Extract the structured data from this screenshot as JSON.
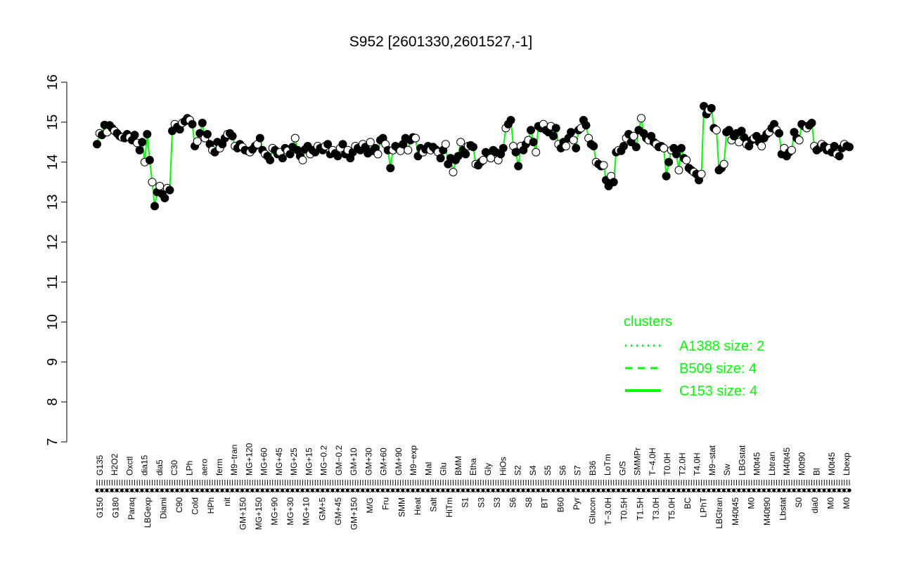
{
  "chart_data": {
    "type": "scatter",
    "title": "S952 [2601330,2601527,-1]",
    "xlabel": "",
    "ylabel": "",
    "ylim": [
      7,
      16
    ],
    "yticks": [
      7,
      8,
      9,
      10,
      11,
      12,
      13,
      14,
      15,
      16
    ],
    "grid": false,
    "legend_position": "right",
    "legend": {
      "title": "clusters",
      "color": "#00ff00",
      "entries": [
        {
          "label": "A1388 size: 2",
          "style": "dotted"
        },
        {
          "label": "B509 size: 4",
          "style": "dashed"
        },
        {
          "label": "C153 size: 4",
          "style": "solid"
        }
      ]
    },
    "line_color": "#00ff00",
    "x_tick_labels_top": [
      "G135",
      "H2O2",
      "Oxctl",
      "dia15",
      "dia5",
      "C30",
      "LPh",
      "aero",
      "ferm",
      "M9−tran",
      "MG+120",
      "MG+60",
      "MG+45",
      "MG+25",
      "MG+15",
      "MG−0.2",
      "GM−0.2",
      "GM+10",
      "GM+30",
      "GM+60",
      "GM+90",
      "M9−exp",
      "Mal",
      "Glu",
      "BMM",
      "Etha",
      "Gly",
      "HiOs",
      "S2",
      "S4",
      "S5",
      "S6",
      "S7",
      "B36",
      "LoTm",
      "G/S",
      "SMMPr",
      "T−4.0H",
      "T0.0H",
      "T2.0H",
      "T4.0H",
      "M9−stat",
      "Sw",
      "LBGstat",
      "M0t45",
      "Lbtran",
      "M40t45",
      "M0t90",
      "Bl",
      "M0t45",
      "Lbexp"
    ],
    "x_tick_labels_bottom": [
      "G150",
      "G180",
      "Paraq",
      "LBGexp",
      "Diami",
      "C90",
      "Cold",
      "HPh",
      "nit",
      "GM+150",
      "MG+150",
      "MG+90",
      "MG+30",
      "MG+10",
      "GM+5",
      "GM+45",
      "GM+150",
      "M/G",
      "Fru",
      "SMM",
      "Heat",
      "Salt",
      "HiTm",
      "S1",
      "S3",
      "S3",
      "S6",
      "S8",
      "BT",
      "B60",
      "Pyr",
      "Glucon",
      "T−3.0H",
      "T0.5H",
      "T1.5H",
      "T3.0H",
      "T5.0H",
      "BC",
      "LPhT",
      "LBGtran",
      "M40t45",
      "M0",
      "M40t90",
      "Lbstat",
      "S0",
      "dia0",
      "M0",
      "M0"
    ],
    "series": [
      {
        "values": [
          14.45,
          14.72,
          14.68,
          14.93,
          14.75,
          14.92,
          14.85,
          14.78,
          14.72,
          14.65,
          14.62,
          14.6,
          14.7,
          14.62,
          14.55,
          14.68,
          14.48,
          14.3,
          14.5,
          14.0,
          14.7,
          14.05
        ]
      },
      {
        "values": [
          13.5,
          12.9,
          13.25,
          13.4,
          13.2,
          13.1,
          13.35,
          13.3
        ]
      },
      {
        "values": [
          14.78,
          14.95,
          14.88,
          14.82,
          14.98,
          15.02,
          15.1,
          15.05,
          14.95,
          14.4,
          14.52,
          14.72,
          14.98,
          14.6,
          14.7,
          14.45,
          14.3,
          14.25,
          14.5,
          14.35,
          14.45,
          14.6,
          14.7,
          14.72,
          14.65
        ]
      },
      {
        "values": [
          14.4,
          14.35,
          14.45,
          14.38,
          14.3,
          14.28,
          14.25,
          14.32,
          14.4,
          14.45,
          14.6,
          14.3,
          14.2,
          14.15,
          14.05,
          14.35,
          14.3,
          14.2,
          14.25,
          14.1,
          14.35,
          14.28,
          14.2,
          14.38,
          14.6,
          14.3,
          14.15,
          14.05,
          14.32,
          14.4,
          14.2,
          14.3,
          14.25,
          14.4,
          14.35,
          14.3,
          14.4,
          14.45,
          14.2,
          14.3,
          14.22,
          14.15,
          14.35,
          14.45,
          14.2,
          14.3,
          14.1,
          14.25,
          14.4,
          14.35,
          14.3,
          14.45,
          14.38,
          14.22,
          14.5,
          14.28,
          14.35,
          14.2,
          14.55,
          14.6,
          14.45,
          14.3,
          13.85,
          14.3,
          14.4,
          14.35,
          14.28,
          14.45,
          14.6,
          14.3,
          14.55,
          14.62,
          14.6
        ]
      },
      {
        "values": [
          14.15,
          14.35,
          14.25,
          14.32,
          14.4,
          14.3,
          14.38,
          14.32,
          14.25,
          14.1,
          14.3,
          14.45
        ]
      },
      {
        "values": [
          13.95,
          14.1,
          13.75,
          14.05,
          14.15,
          14.5,
          14.3,
          14.2,
          14.4,
          14.42,
          14.38
        ]
      },
      {
        "values": [
          13.95,
          13.92,
          14.0,
          14.05,
          14.25,
          14.2,
          14.1,
          14.3,
          14.25,
          14.05,
          14.2,
          14.35
        ]
      },
      {
        "values": [
          14.85,
          14.95,
          15.05,
          14.4,
          14.25,
          13.9,
          14.4,
          14.3,
          14.45,
          14.55,
          14.8,
          14.5,
          14.25
        ]
      },
      {
        "values": [
          14.9,
          14.85,
          14.95,
          14.8,
          14.75,
          14.9,
          14.65,
          14.85,
          14.45,
          14.35,
          14.5,
          14.4,
          14.6,
          14.75,
          14.55,
          14.35,
          14.8,
          14.85,
          15.05,
          14.92
        ]
      },
      {
        "values": [
          14.6,
          14.45,
          14.4,
          14.0,
          13.95,
          13.9,
          13.92,
          13.55
        ]
      },
      {
        "values": [
          13.4,
          13.65,
          13.5
        ]
      },
      {
        "values": [
          14.25,
          14.3,
          14.28,
          14.4,
          14.6,
          14.7,
          14.5,
          14.65,
          14.38
        ]
      },
      {
        "values": [
          14.8,
          15.1,
          14.72,
          14.6,
          14.55,
          14.65,
          14.5,
          14.45,
          14.38,
          14.4,
          14.35
        ]
      },
      {
        "values": [
          13.65,
          14.0,
          14.3,
          14.35,
          14.2,
          13.8,
          14.35,
          14.1,
          14.05,
          13.85,
          13.8,
          13.75,
          13.7,
          13.55,
          13.7
        ]
      },
      {
        "values": [
          15.4,
          15.2,
          15.3,
          15.35
        ]
      },
      {
        "values": [
          14.85,
          14.8
        ]
      },
      {
        "values": [
          13.8,
          13.85,
          13.95
        ]
      },
      {
        "values": [
          14.75,
          14.8,
          14.55,
          14.65,
          14.72,
          14.5,
          14.78,
          14.62
        ]
      },
      {
        "values": [
          14.45,
          14.4,
          14.55,
          14.6,
          14.65,
          14.5,
          14.4,
          14.6
        ]
      },
      {
        "values": [
          14.7,
          14.75,
          14.85,
          14.95,
          14.8,
          14.72
        ]
      },
      {
        "values": [
          14.2,
          14.35,
          14.15,
          14.25,
          14.3
        ]
      },
      {
        "values": [
          14.75,
          14.6,
          14.55
        ]
      },
      {
        "values": [
          14.95,
          14.9,
          14.85,
          14.92,
          14.98
        ]
      },
      {
        "values": [
          14.4,
          14.3,
          14.35,
          14.45,
          14.4,
          14.3,
          14.35,
          14.25,
          14.4,
          14.2,
          14.15,
          14.35,
          14.45,
          14.4,
          14.38
        ]
      }
    ]
  }
}
